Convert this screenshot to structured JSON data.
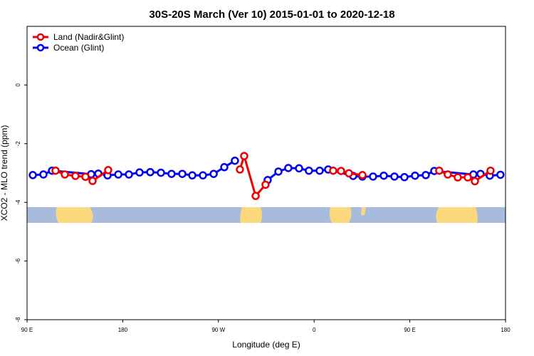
{
  "chart_data": {
    "type": "line",
    "title": "30S-20S March (Ver 10)   2015-01-01 to 2020-12-18",
    "x_label": "Longitude (deg E)",
    "y_label": "XCO2 - MLO trend (ppm)",
    "xlim": [
      90,
      540
    ],
    "xticks": [
      {
        "value": 90,
        "label": "90 E"
      },
      {
        "value": 180,
        "label": "180"
      },
      {
        "value": 270,
        "label": "90 W"
      },
      {
        "value": 360,
        "label": "0"
      },
      {
        "value": 450,
        "label": "90 E"
      },
      {
        "value": 540,
        "label": "180"
      }
    ],
    "ylim": [
      -8,
      2
    ],
    "yticks": [
      0,
      -2,
      -4,
      -6,
      -8
    ],
    "legend": "top-left",
    "series": [
      {
        "name": "Land (Nadir&Glint)",
        "color": "#ee0000",
        "x": [
          116.8,
          125.5,
          135.5,
          144.9,
          151.6,
          166.3,
          null,
          290.2,
          294.2,
          305,
          314.3,
          null,
          377.9,
          385.3,
          392.7,
          405.4,
          null,
          477.7,
          485.7,
          495.1,
          504.5,
          511.2,
          525.9
        ],
        "values": [
          -2.92,
          -3.05,
          -3.1,
          -3.13,
          -3.27,
          -2.9,
          null,
          -2.88,
          -2.42,
          -3.78,
          -3.4,
          null,
          -2.92,
          -2.93,
          -3.01,
          -3.07,
          null,
          -2.92,
          -3.05,
          -3.15,
          -3.15,
          -3.28,
          -2.92
        ]
      },
      {
        "name": "Ocean (Glint)",
        "color": "#0000ee",
        "x": [
          95.4,
          105.4,
          113.5,
          150.3,
          157,
          165.7,
          175.8,
          185.8,
          195.8,
          205.9,
          215.9,
          225.9,
          236,
          245.4,
          255.4,
          265.5,
          275.5,
          285.5,
          null,
          316.3,
          326.4,
          335.7,
          345.8,
          355.1,
          365.2,
          373.2,
          396.7,
          405.4,
          415.4,
          425.5,
          435.5,
          444.9,
          454.9,
          465,
          473,
          509.8,
          516.5,
          525.2,
          535.2
        ],
        "values": [
          -3.07,
          -3.05,
          -2.92,
          -3.04,
          -3.02,
          -3.08,
          -3.05,
          -3.05,
          -2.98,
          -2.97,
          -2.99,
          -3.03,
          -3.03,
          -3.08,
          -3.08,
          -3.03,
          -2.8,
          -2.58,
          null,
          -3.24,
          -2.95,
          -2.83,
          -2.84,
          -2.92,
          -2.92,
          -2.88,
          -3.1,
          -3.12,
          -3.12,
          -3.09,
          -3.12,
          -3.14,
          -3.09,
          -3.07,
          -2.93,
          -3.05,
          -3.03,
          -3.09,
          -3.06
        ]
      }
    ]
  }
}
